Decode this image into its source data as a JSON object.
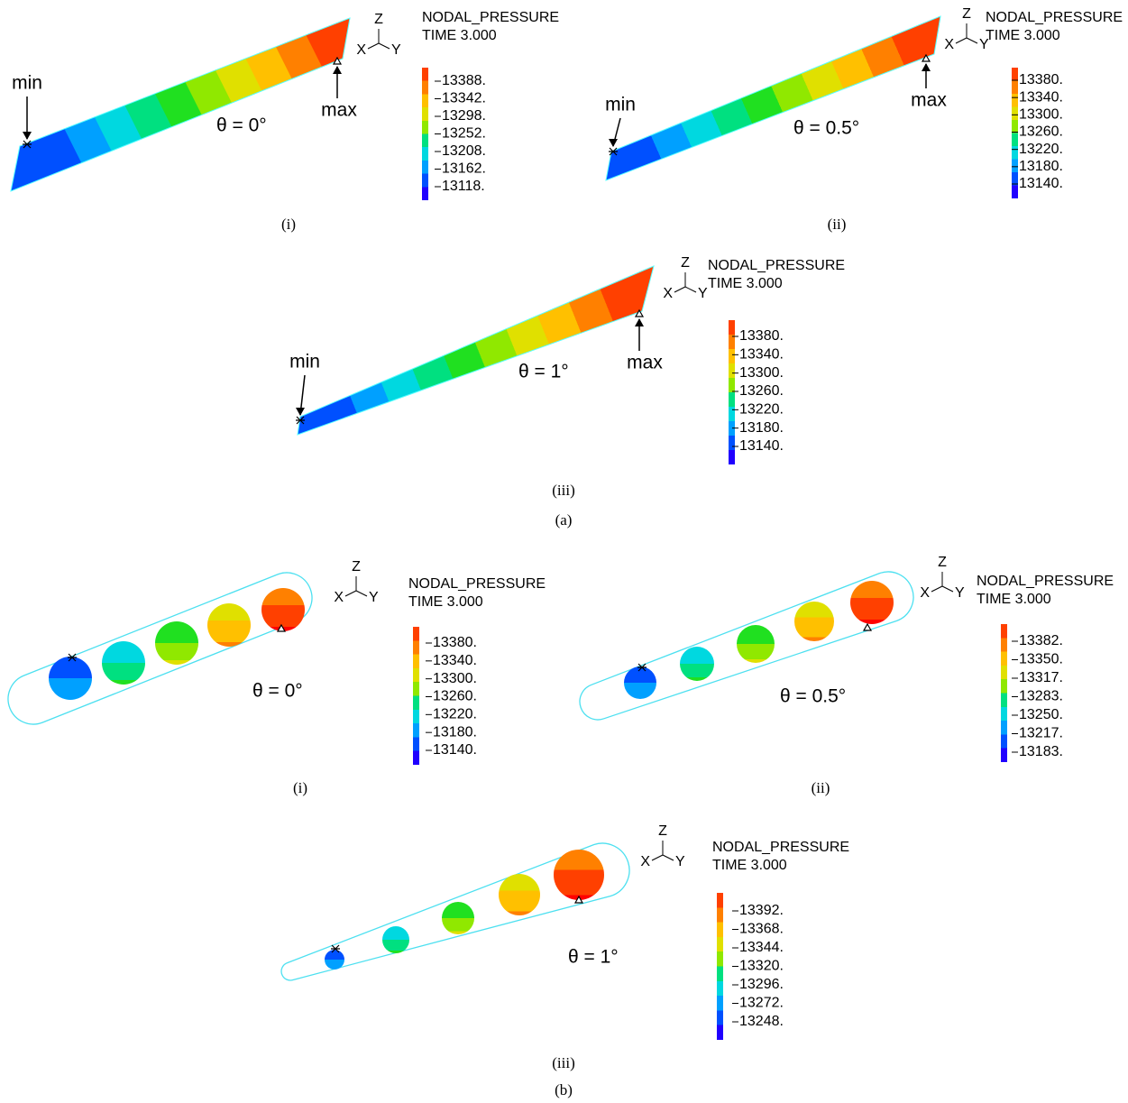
{
  "figure": {
    "groups": [
      {
        "label": "(a)",
        "panels": [
          {
            "caption": "(i)",
            "legend_title": "NODAL_PRESSURE",
            "legend_time": "TIME 3.000",
            "axes": [
              "Z",
              "X",
              "Y"
            ],
            "angle": "θ = 0°",
            "min_label": "min",
            "max_label": "max",
            "legend_ticks": [
              "13388.",
              "13342.",
              "13298.",
              "13252.",
              "13208.",
              "13162.",
              "13118."
            ]
          },
          {
            "caption": "(ii)",
            "legend_title": "NODAL_PRESSURE",
            "legend_time": "TIME 3.000",
            "axes": [
              "Z",
              "X",
              "Y"
            ],
            "angle": "θ = 0.5°",
            "min_label": "min",
            "max_label": "max",
            "legend_ticks": [
              "13380.",
              "13340.",
              "13300.",
              "13260.",
              "13220.",
              "13180.",
              "13140."
            ]
          },
          {
            "caption": "(iii)",
            "legend_title": "NODAL_PRESSURE",
            "legend_time": "TIME 3.000",
            "axes": [
              "Z",
              "X",
              "Y"
            ],
            "angle": "θ = 1°",
            "min_label": "min",
            "max_label": "max",
            "legend_ticks": [
              "13380.",
              "13340.",
              "13300.",
              "13260.",
              "13220.",
              "13180.",
              "13140."
            ]
          }
        ]
      },
      {
        "label": "(b)",
        "panels": [
          {
            "caption": "(i)",
            "legend_title": "NODAL_PRESSURE",
            "legend_time": "TIME 3.000",
            "axes": [
              "Z",
              "X",
              "Y"
            ],
            "angle": "θ = 0°",
            "legend_ticks": [
              "13380.",
              "13340.",
              "13300.",
              "13260.",
              "13220.",
              "13180.",
              "13140."
            ]
          },
          {
            "caption": "(ii)",
            "legend_title": "NODAL_PRESSURE",
            "legend_time": "TIME 3.000",
            "axes": [
              "Z",
              "X",
              "Y"
            ],
            "angle": "θ = 0.5°",
            "legend_ticks": [
              "13382.",
              "13350.",
              "13317.",
              "13283.",
              "13250.",
              "13217.",
              "13183."
            ]
          },
          {
            "caption": "(iii)",
            "legend_title": "NODAL_PRESSURE",
            "legend_time": "TIME 3.000",
            "axes": [
              "Z",
              "X",
              "Y"
            ],
            "angle": "θ = 1°",
            "legend_ticks": [
              "13392.",
              "13368.",
              "13344.",
              "13320.",
              "13296.",
              "13272.",
              "13248."
            ]
          }
        ]
      }
    ]
  }
}
